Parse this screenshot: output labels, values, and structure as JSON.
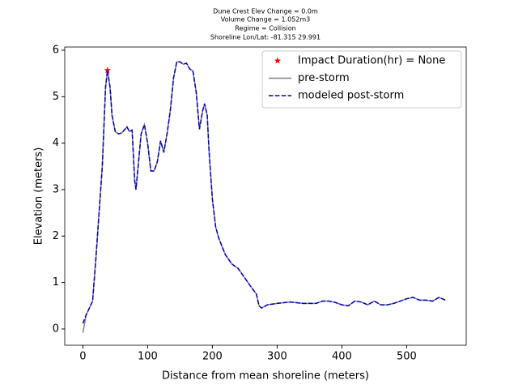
{
  "chart_data": {
    "type": "line",
    "title": [
      "Dune Crest Elev Change = 0.0m",
      "Volume Change = 1.052m3",
      "Regime = Collision",
      "Shoreline Lon/Lat: -81.315 29.991"
    ],
    "xlabel": "Distance from mean shoreline (meters)",
    "ylabel": "Elevation (meters)",
    "xlim": [
      -28,
      592
    ],
    "ylim": [
      -0.35,
      6.07
    ],
    "xticks": [
      0,
      100,
      200,
      300,
      400,
      500
    ],
    "yticks": [
      0,
      1,
      2,
      3,
      4,
      5,
      6
    ],
    "legend": "upper right",
    "series": [
      {
        "name": "Impact Duration(hr) = None",
        "color": "#ff0000",
        "marker": "star",
        "x": [
          38
        ],
        "values": [
          5.57
        ]
      },
      {
        "name": "pre-storm",
        "color": "#808080",
        "linestyle": "solid",
        "x": [
          0,
          5,
          10,
          15,
          20,
          25,
          30,
          35,
          38,
          42,
          45,
          50,
          55,
          60,
          65,
          68,
          72,
          76,
          80,
          82,
          86,
          90,
          95,
          100,
          105,
          110,
          115,
          120,
          125,
          130,
          135,
          140,
          145,
          150,
          155,
          160,
          165,
          170,
          175,
          180,
          185,
          188,
          192,
          195,
          200,
          205,
          210,
          220,
          230,
          240,
          250,
          260,
          268,
          272,
          276,
          285,
          300,
          320,
          340,
          360,
          370,
          380,
          390,
          400,
          410,
          420,
          430,
          440,
          450,
          460,
          470,
          480,
          490,
          500,
          510,
          520,
          530,
          540,
          550,
          560
        ],
        "values": [
          -0.08,
          0.3,
          0.45,
          0.6,
          1.5,
          2.5,
          3.5,
          5.2,
          5.57,
          5.2,
          4.6,
          4.25,
          4.2,
          4.22,
          4.3,
          4.35,
          4.25,
          4.28,
          3.2,
          3.0,
          3.6,
          4.2,
          4.4,
          4.0,
          3.4,
          3.4,
          3.6,
          4.05,
          3.8,
          4.2,
          4.7,
          5.4,
          5.75,
          5.75,
          5.7,
          5.72,
          5.6,
          5.55,
          5.1,
          4.3,
          4.7,
          4.85,
          4.6,
          3.8,
          2.8,
          2.2,
          1.95,
          1.6,
          1.4,
          1.3,
          1.1,
          0.9,
          0.75,
          0.5,
          0.45,
          0.52,
          0.55,
          0.58,
          0.55,
          0.55,
          0.6,
          0.6,
          0.57,
          0.52,
          0.5,
          0.6,
          0.58,
          0.52,
          0.6,
          0.52,
          0.52,
          0.55,
          0.6,
          0.65,
          0.68,
          0.62,
          0.62,
          0.6,
          0.68,
          0.62
        ]
      },
      {
        "name": "modeled post-storm",
        "color": "#0000cc",
        "linestyle": "dashed",
        "x": [
          0,
          5,
          10,
          15,
          20,
          25,
          30,
          35,
          38,
          42,
          45,
          50,
          55,
          60,
          65,
          68,
          72,
          76,
          80,
          82,
          86,
          90,
          95,
          100,
          105,
          110,
          115,
          120,
          125,
          130,
          135,
          140,
          145,
          150,
          155,
          160,
          165,
          170,
          175,
          180,
          185,
          188,
          192,
          195,
          200,
          205,
          210,
          220,
          230,
          240,
          250,
          260,
          268,
          272,
          276,
          285,
          300,
          320,
          340,
          360,
          370,
          380,
          390,
          400,
          410,
          420,
          430,
          440,
          450,
          460,
          470,
          480,
          490,
          500,
          510,
          520,
          530,
          540,
          550,
          560
        ],
        "values": [
          0.12,
          0.3,
          0.45,
          0.6,
          1.5,
          2.5,
          3.5,
          5.2,
          5.57,
          5.2,
          4.6,
          4.25,
          4.2,
          4.22,
          4.3,
          4.35,
          4.25,
          4.28,
          3.2,
          3.0,
          3.6,
          4.2,
          4.4,
          4.0,
          3.4,
          3.4,
          3.6,
          4.05,
          3.8,
          4.2,
          4.7,
          5.4,
          5.75,
          5.75,
          5.7,
          5.72,
          5.6,
          5.55,
          5.1,
          4.3,
          4.7,
          4.85,
          4.6,
          3.8,
          2.8,
          2.2,
          1.95,
          1.6,
          1.4,
          1.3,
          1.1,
          0.9,
          0.75,
          0.5,
          0.45,
          0.52,
          0.55,
          0.58,
          0.55,
          0.55,
          0.6,
          0.6,
          0.57,
          0.52,
          0.5,
          0.6,
          0.58,
          0.52,
          0.6,
          0.52,
          0.52,
          0.55,
          0.6,
          0.65,
          0.68,
          0.62,
          0.62,
          0.6,
          0.68,
          0.62
        ]
      }
    ]
  }
}
